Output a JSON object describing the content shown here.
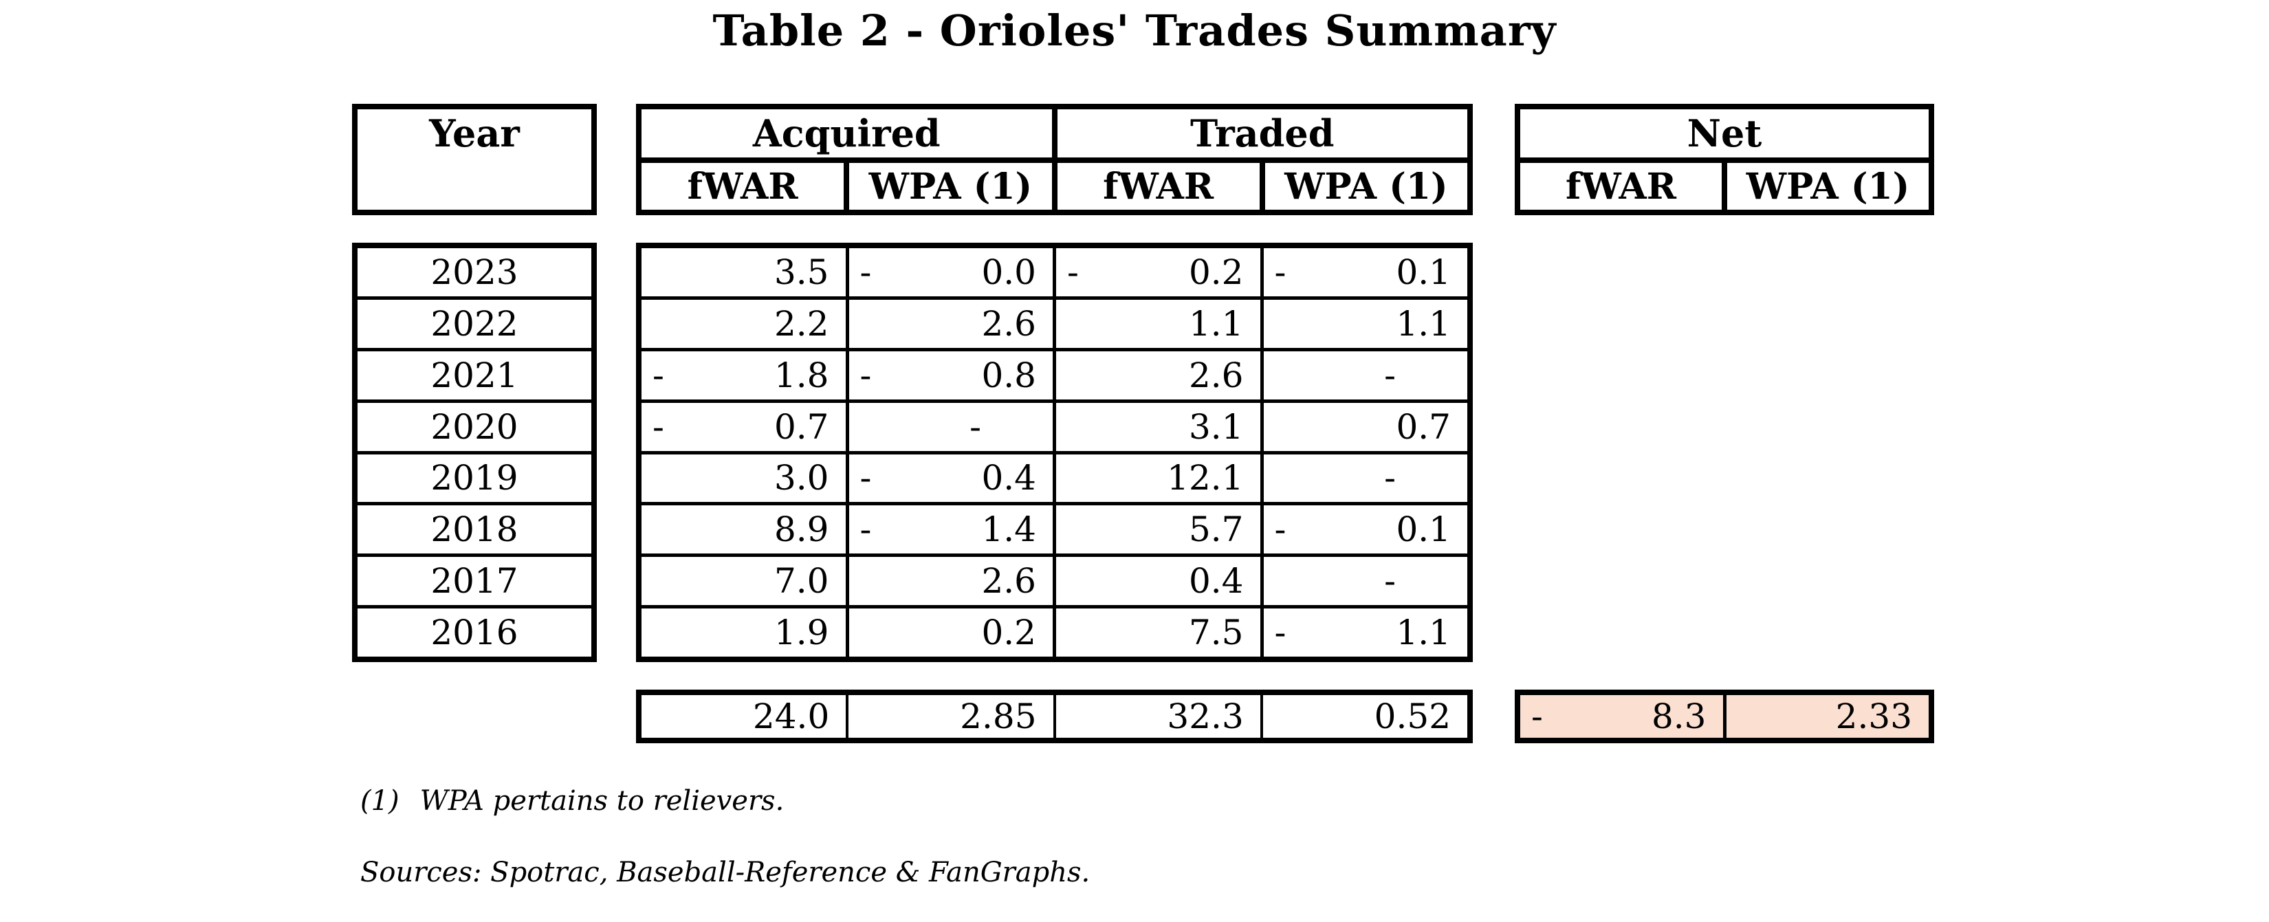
{
  "title": "Table 2 - Orioles' Trades Summary",
  "colors": {
    "border": "#000000",
    "net_total_bg": "#fbe0d2",
    "background": "#ffffff"
  },
  "headers": {
    "year": "Year",
    "acquired": "Acquired",
    "traded": "Traded",
    "net": "Net",
    "fwar": "fWAR",
    "wpa": "WPA (1)"
  },
  "table": {
    "rows": [
      {
        "year": "2023",
        "acq_fwar": "3.5",
        "acq_wpa": "-0.0",
        "trd_fwar": "-0.2",
        "trd_wpa": "-0.1"
      },
      {
        "year": "2022",
        "acq_fwar": "2.2",
        "acq_wpa": "2.6",
        "trd_fwar": "1.1",
        "trd_wpa": "1.1"
      },
      {
        "year": "2021",
        "acq_fwar": "-1.8",
        "acq_wpa": "-0.8",
        "trd_fwar": "2.6",
        "trd_wpa": "-"
      },
      {
        "year": "2020",
        "acq_fwar": "-0.7",
        "acq_wpa": "-",
        "trd_fwar": "3.1",
        "trd_wpa": "0.7"
      },
      {
        "year": "2019",
        "acq_fwar": "3.0",
        "acq_wpa": "-0.4",
        "trd_fwar": "12.1",
        "trd_wpa": "-"
      },
      {
        "year": "2018",
        "acq_fwar": "8.9",
        "acq_wpa": "-1.4",
        "trd_fwar": "5.7",
        "trd_wpa": "-0.1"
      },
      {
        "year": "2017",
        "acq_fwar": "7.0",
        "acq_wpa": "2.6",
        "trd_fwar": "0.4",
        "trd_wpa": "-"
      },
      {
        "year": "2016",
        "acq_fwar": "1.9",
        "acq_wpa": "0.2",
        "trd_fwar": "7.5",
        "trd_wpa": "-1.1"
      }
    ],
    "totals": {
      "acq_fwar": "24.0",
      "acq_wpa": "2.85",
      "trd_fwar": "32.3",
      "trd_wpa": "0.52",
      "net_fwar": "-8.3",
      "net_wpa": "2.33"
    }
  },
  "footnotes": [
    {
      "marker": "(1)",
      "text": "WPA pertains to relievers."
    }
  ],
  "sources": "Sources: Spotrac, Baseball-Reference & FanGraphs."
}
